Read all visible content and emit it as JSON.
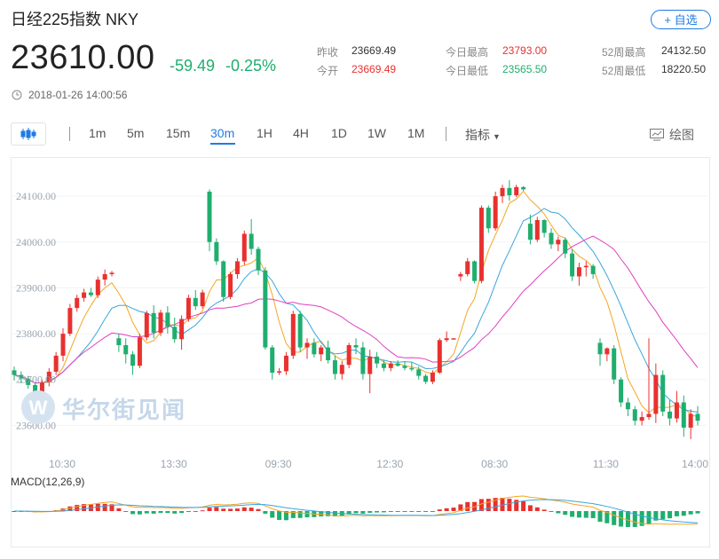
{
  "header": {
    "title": "日经225指数  NKY",
    "follow_label": "+ 自选",
    "price": "23610.00",
    "change": "-59.49",
    "change_pct": "-0.25%",
    "timestamp": "2018-01-26 14:00:56",
    "stats": [
      {
        "label": "昨收",
        "value": "23669.49",
        "color": "#333333"
      },
      {
        "label": "今开",
        "value": "23669.49",
        "color": "#e8312f"
      },
      {
        "label": "今日最高",
        "value": "23793.00",
        "color": "#e8312f"
      },
      {
        "label": "今日最低",
        "value": "23565.50",
        "color": "#1fae6e"
      },
      {
        "label": "52周最高",
        "value": "24132.50",
        "color": "#333333"
      },
      {
        "label": "52周最低",
        "value": "18220.50",
        "color": "#333333"
      }
    ],
    "colors": {
      "up": "#e8312f",
      "down": "#1fae6e",
      "accent": "#1e7be5"
    }
  },
  "toolbar": {
    "tabs": [
      "1m",
      "5m",
      "15m",
      "30m",
      "1H",
      "4H",
      "1D",
      "1W",
      "1M"
    ],
    "active_tab": "30m",
    "indicator_label": "指标",
    "draw_label": "绘图",
    "chart_icon": "candlestick-icon"
  },
  "watermark": "华尔街见闻",
  "chart_data": {
    "type": "candlestick",
    "ytick_labels": [
      "24100.00",
      "24000.00",
      "23900.00",
      "23800.00",
      "23700.00",
      "23600.00"
    ],
    "ylim": [
      23560,
      24170
    ],
    "xtick_labels": [
      "10:30",
      "13:30",
      "09:30",
      "12:30",
      "08:30",
      "11:30",
      "14:00"
    ],
    "ma_colors": [
      "#f5a623",
      "#3aa6dd",
      "#e040c0"
    ],
    "candles": [
      [
        23720,
        23728,
        23698,
        23710
      ],
      [
        23710,
        23718,
        23692,
        23702
      ],
      [
        23702,
        23708,
        23680,
        23688
      ],
      [
        23688,
        23692,
        23664,
        23670
      ],
      [
        23670,
        23700,
        23665,
        23694
      ],
      [
        23694,
        23725,
        23685,
        23717
      ],
      [
        23717,
        23760,
        23710,
        23752
      ],
      [
        23752,
        23812,
        23740,
        23800
      ],
      [
        23800,
        23865,
        23795,
        23856
      ],
      [
        23856,
        23885,
        23848,
        23878
      ],
      [
        23878,
        23898,
        23870,
        23890
      ],
      [
        23890,
        23900,
        23880,
        23884
      ],
      [
        23884,
        23925,
        23878,
        23918
      ],
      [
        23918,
        23940,
        23905,
        23930
      ],
      [
        23930,
        23937,
        23925,
        23933
      ],
      [
        23790,
        23800,
        23760,
        23775
      ],
      [
        23775,
        23790,
        23735,
        23755
      ],
      [
        23755,
        23762,
        23710,
        23730
      ],
      [
        23730,
        23800,
        23725,
        23792
      ],
      [
        23792,
        23850,
        23785,
        23845
      ],
      [
        23845,
        23862,
        23790,
        23802
      ],
      [
        23802,
        23852,
        23795,
        23846
      ],
      [
        23846,
        23860,
        23800,
        23815
      ],
      [
        23815,
        23835,
        23780,
        23788
      ],
      [
        23788,
        23840,
        23765,
        23832
      ],
      [
        23832,
        23885,
        23826,
        23878
      ],
      [
        23878,
        23895,
        23852,
        23860
      ],
      [
        23860,
        23896,
        23855,
        23890
      ],
      [
        24110,
        24115,
        23980,
        24000
      ],
      [
        24000,
        24008,
        23950,
        23958
      ],
      [
        23958,
        23960,
        23870,
        23880
      ],
      [
        23880,
        23935,
        23875,
        23930
      ],
      [
        23930,
        23965,
        23920,
        23958
      ],
      [
        23958,
        24025,
        23950,
        24018
      ],
      [
        24018,
        24050,
        23972,
        23985
      ],
      [
        23985,
        23990,
        23928,
        23938
      ],
      [
        23938,
        23945,
        23765,
        23770
      ],
      [
        23770,
        23775,
        23700,
        23715
      ],
      [
        23715,
        23725,
        23710,
        23718
      ],
      [
        23718,
        23760,
        23710,
        23752
      ],
      [
        23752,
        23850,
        23745,
        23843
      ],
      [
        23843,
        23850,
        23760,
        23770
      ],
      [
        23770,
        23790,
        23745,
        23780
      ],
      [
        23780,
        23790,
        23748,
        23755
      ],
      [
        23755,
        23775,
        23740,
        23770
      ],
      [
        23770,
        23785,
        23735,
        23742
      ],
      [
        23742,
        23752,
        23700,
        23712
      ],
      [
        23712,
        23740,
        23700,
        23732
      ],
      [
        23732,
        23780,
        23725,
        23775
      ],
      [
        23775,
        23790,
        23755,
        23770
      ],
      [
        23770,
        23782,
        23700,
        23712
      ],
      [
        23712,
        23765,
        23670,
        23750
      ],
      [
        23750,
        23760,
        23725,
        23735
      ],
      [
        23735,
        23742,
        23718,
        23725
      ],
      [
        23725,
        23740,
        23718,
        23735
      ],
      [
        23735,
        23742,
        23728,
        23730
      ],
      [
        23730,
        23740,
        23720,
        23725
      ],
      [
        23725,
        23738,
        23718,
        23722
      ],
      [
        23722,
        23728,
        23700,
        23708
      ],
      [
        23708,
        23712,
        23690,
        23695
      ],
      [
        23695,
        23720,
        23690,
        23715
      ],
      [
        23715,
        23790,
        23712,
        23786
      ],
      [
        23786,
        23805,
        23782,
        23790
      ],
      [
        23790,
        23790,
        23790,
        23790
      ],
      [
        23925,
        23935,
        23915,
        23930
      ],
      [
        23930,
        23965,
        23925,
        23958
      ],
      [
        23958,
        23960,
        23910,
        23915
      ],
      [
        23915,
        24080,
        23910,
        24075
      ],
      [
        24075,
        24080,
        24020,
        24030
      ],
      [
        24030,
        24110,
        24025,
        24100
      ],
      [
        24100,
        24125,
        24085,
        24118
      ],
      [
        24118,
        24135,
        24090,
        24102
      ],
      [
        24102,
        24125,
        24098,
        24120
      ],
      [
        24120,
        24122,
        24112,
        24115
      ],
      [
        24040,
        24060,
        23995,
        24005
      ],
      [
        24005,
        24055,
        24000,
        24048
      ],
      [
        24048,
        24050,
        24010,
        24020
      ],
      [
        24020,
        24030,
        23985,
        23995
      ],
      [
        23995,
        24012,
        23980,
        24005
      ],
      [
        24005,
        24010,
        23965,
        23975
      ],
      [
        23975,
        23985,
        23915,
        23925
      ],
      [
        23925,
        23955,
        23905,
        23945
      ],
      [
        23945,
        23958,
        23925,
        23948
      ],
      [
        23948,
        23952,
        23920,
        23930
      ],
      [
        23780,
        23790,
        23730,
        23755
      ],
      [
        23755,
        23770,
        23740,
        23768
      ],
      [
        23768,
        23775,
        23690,
        23700
      ],
      [
        23700,
        23705,
        23640,
        23650
      ],
      [
        23650,
        23660,
        23620,
        23635
      ],
      [
        23635,
        23642,
        23600,
        23610
      ],
      [
        23610,
        23630,
        23600,
        23618
      ],
      [
        23618,
        23790,
        23612,
        23625
      ],
      [
        23625,
        23735,
        23605,
        23710
      ],
      [
        23710,
        23720,
        23620,
        23630
      ],
      [
        23630,
        23655,
        23600,
        23615
      ],
      [
        23615,
        23675,
        23606,
        23650
      ],
      [
        23650,
        23665,
        23575,
        23595
      ],
      [
        23595,
        23635,
        23570,
        23625
      ],
      [
        23625,
        23642,
        23600,
        23610
      ]
    ],
    "macd_label": "MACD(12,26,9)"
  }
}
